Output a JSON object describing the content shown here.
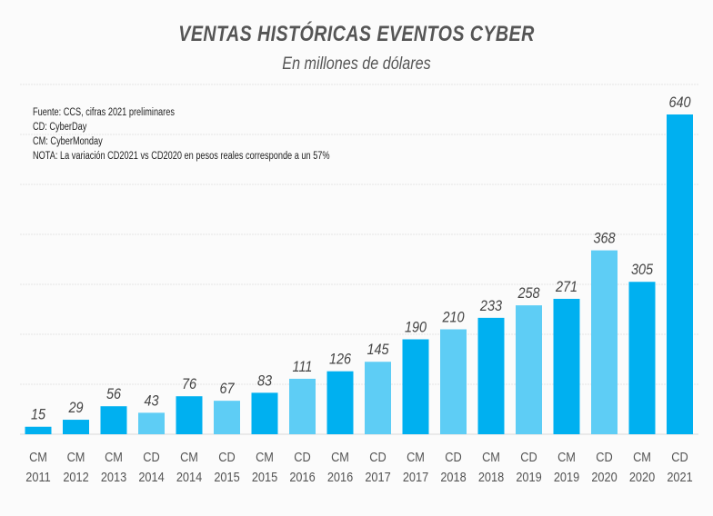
{
  "chart_data": {
    "type": "bar",
    "title": "VENTAS HISTÓRICAS EVENTOS CYBER",
    "subtitle": "En millones de dólares",
    "notes": [
      "Fuente: CCS, cifras 2021 preliminares",
      "CD: CyberDay",
      "CM: CyberMonday",
      "NOTA: La variación CD2021 vs CD2020 en pesos reales corresponde a un 57%"
    ],
    "categories": [
      {
        "event": "CM",
        "year": "2011"
      },
      {
        "event": "CM",
        "year": "2012"
      },
      {
        "event": "CM",
        "year": "2013"
      },
      {
        "event": "CD",
        "year": "2014"
      },
      {
        "event": "CM",
        "year": "2014"
      },
      {
        "event": "CD",
        "year": "2015"
      },
      {
        "event": "CM",
        "year": "2015"
      },
      {
        "event": "CD",
        "year": "2016"
      },
      {
        "event": "CM",
        "year": "2016"
      },
      {
        "event": "CD",
        "year": "2017"
      },
      {
        "event": "CM",
        "year": "2017"
      },
      {
        "event": "CD",
        "year": "2018"
      },
      {
        "event": "CM",
        "year": "2018"
      },
      {
        "event": "CD",
        "year": "2019"
      },
      {
        "event": "CM",
        "year": "2019"
      },
      {
        "event": "CD",
        "year": "2020"
      },
      {
        "event": "CM",
        "year": "2020"
      },
      {
        "event": "CD",
        "year": "2021"
      }
    ],
    "values": [
      15,
      29,
      56,
      43,
      76,
      67,
      83,
      111,
      126,
      145,
      190,
      210,
      233,
      258,
      271,
      368,
      305,
      640
    ],
    "bar_colors": [
      "#00b0f0",
      "#00b0f0",
      "#00b0f0",
      "#5ecdf5",
      "#00b0f0",
      "#5ecdf5",
      "#00b0f0",
      "#5ecdf5",
      "#00b0f0",
      "#5ecdf5",
      "#00b0f0",
      "#5ecdf5",
      "#00b0f0",
      "#5ecdf5",
      "#00b0f0",
      "#5ecdf5",
      "#00b0f0",
      "#00b0f0"
    ],
    "ylim": [
      0,
      700
    ],
    "grid": true,
    "grid_step": 100,
    "xlabel": "",
    "ylabel": ""
  }
}
